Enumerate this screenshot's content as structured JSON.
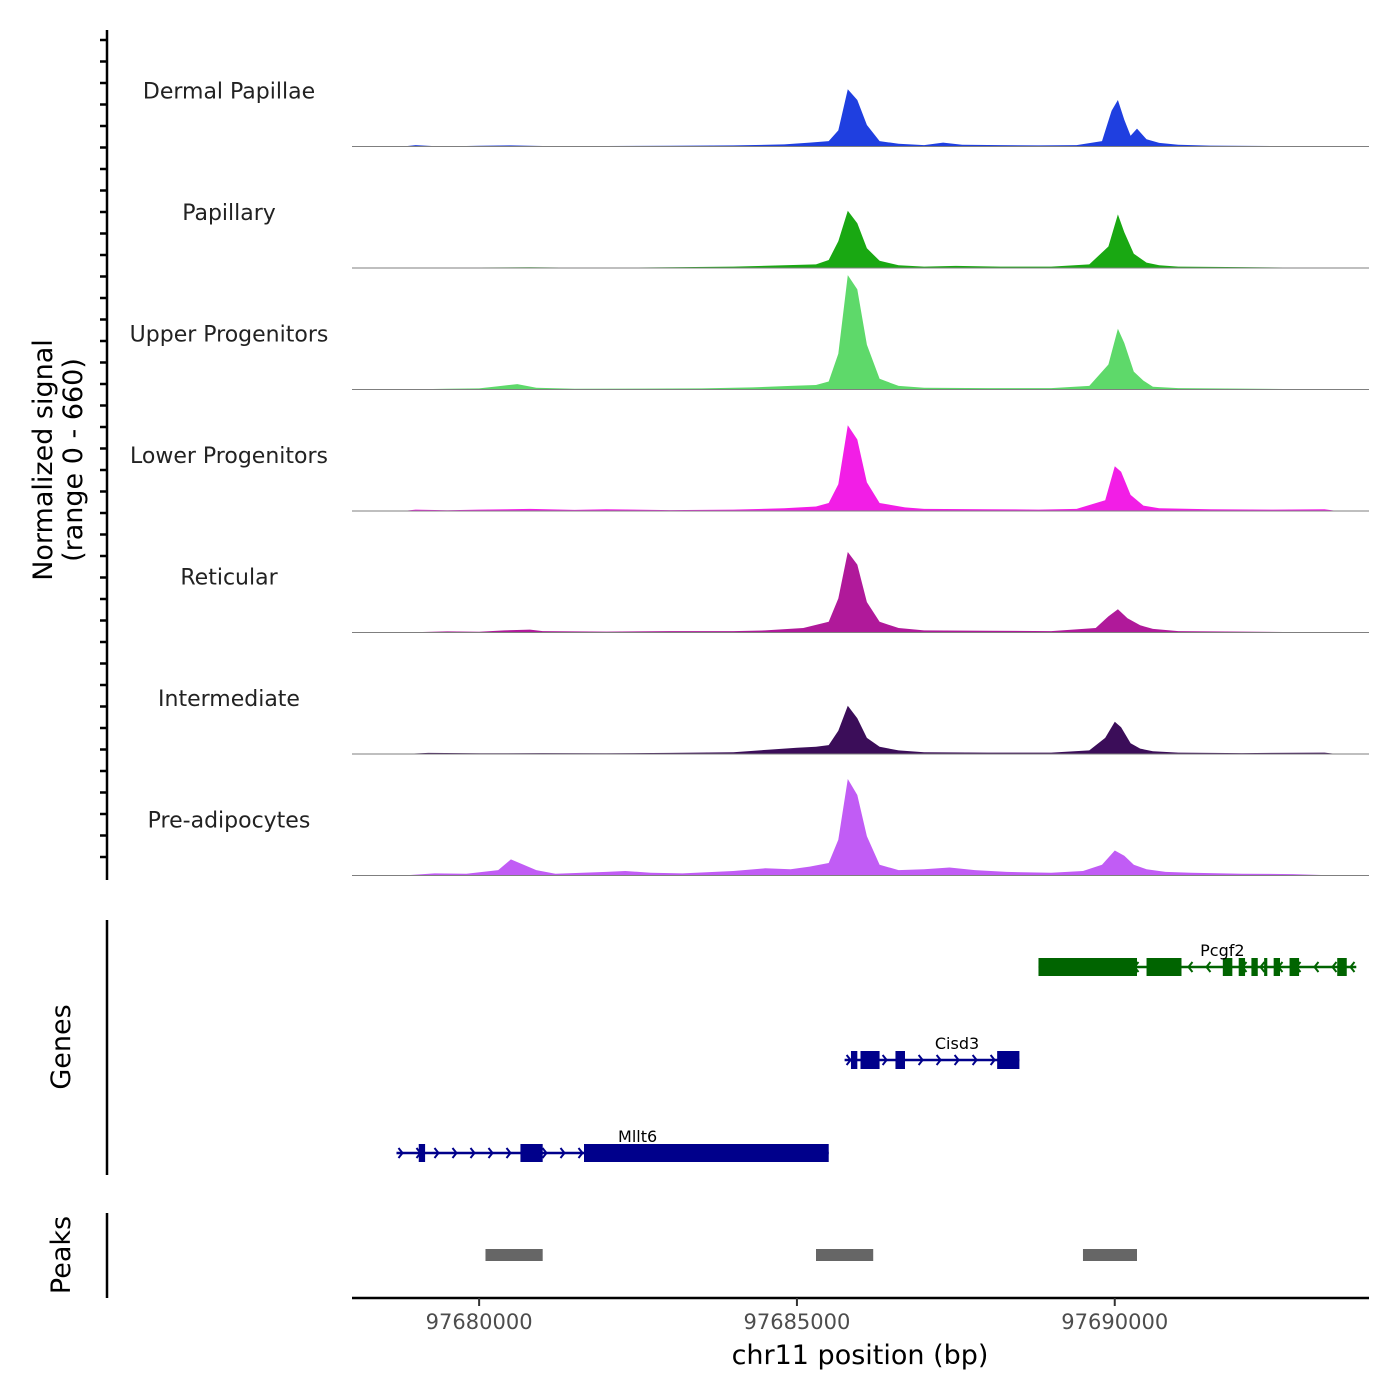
{
  "chart_data": {
    "type": "area",
    "title": "",
    "xlabel": "chr11 position (bp)",
    "ylabel_line1": "Normalized signal",
    "ylabel_line2": "(range 0 - 660)",
    "ylim": [
      0,
      660
    ],
    "xlim": [
      97678000,
      97694000
    ],
    "x_ticks": [
      97680000,
      97685000,
      97690000
    ],
    "x_tick_labels": [
      "97680000",
      "97685000",
      "97690000"
    ],
    "tracks": [
      {
        "name": "Dermal Papillae",
        "color": "#1f3fe0",
        "points": [
          [
            97678800,
            0
          ],
          [
            97679000,
            8
          ],
          [
            97679400,
            0
          ],
          [
            97680000,
            4
          ],
          [
            97680500,
            6
          ],
          [
            97681000,
            3
          ],
          [
            97682000,
            3
          ],
          [
            97683000,
            4
          ],
          [
            97684000,
            6
          ],
          [
            97684800,
            12
          ],
          [
            97685200,
            22
          ],
          [
            97685500,
            30
          ],
          [
            97685650,
            90
          ],
          [
            97685800,
            320
          ],
          [
            97685950,
            260
          ],
          [
            97686100,
            120
          ],
          [
            97686300,
            30
          ],
          [
            97686600,
            15
          ],
          [
            97687000,
            8
          ],
          [
            97687300,
            22
          ],
          [
            97687600,
            10
          ],
          [
            97688200,
            8
          ],
          [
            97688800,
            6
          ],
          [
            97689400,
            8
          ],
          [
            97689800,
            30
          ],
          [
            97689950,
            200
          ],
          [
            97690050,
            260
          ],
          [
            97690150,
            150
          ],
          [
            97690250,
            60
          ],
          [
            97690350,
            100
          ],
          [
            97690500,
            40
          ],
          [
            97690700,
            20
          ],
          [
            97691000,
            10
          ],
          [
            97691500,
            5
          ],
          [
            97692500,
            3
          ],
          [
            97693500,
            0
          ]
        ]
      },
      {
        "name": "Papillary",
        "color": "#19a812",
        "points": [
          [
            97678800,
            0
          ],
          [
            97680000,
            3
          ],
          [
            97680800,
            4
          ],
          [
            97681500,
            2
          ],
          [
            97682500,
            3
          ],
          [
            97683200,
            5
          ],
          [
            97684000,
            8
          ],
          [
            97684800,
            15
          ],
          [
            97685300,
            20
          ],
          [
            97685500,
            45
          ],
          [
            97685650,
            150
          ],
          [
            97685800,
            320
          ],
          [
            97685950,
            250
          ],
          [
            97686100,
            110
          ],
          [
            97686300,
            40
          ],
          [
            97686600,
            15
          ],
          [
            97687000,
            8
          ],
          [
            97687500,
            12
          ],
          [
            97688200,
            8
          ],
          [
            97689000,
            8
          ],
          [
            97689600,
            20
          ],
          [
            97689900,
            120
          ],
          [
            97690050,
            300
          ],
          [
            97690150,
            200
          ],
          [
            97690300,
            80
          ],
          [
            97690500,
            30
          ],
          [
            97690700,
            15
          ],
          [
            97691000,
            8
          ],
          [
            97692000,
            5
          ],
          [
            97693500,
            0
          ]
        ]
      },
      {
        "name": "Upper Progenitors",
        "color": "#5ed96a",
        "points": [
          [
            97678800,
            0
          ],
          [
            97679500,
            4
          ],
          [
            97680000,
            6
          ],
          [
            97680300,
            18
          ],
          [
            97680600,
            30
          ],
          [
            97680900,
            10
          ],
          [
            97681500,
            4
          ],
          [
            97682500,
            5
          ],
          [
            97683500,
            6
          ],
          [
            97684300,
            12
          ],
          [
            97684900,
            20
          ],
          [
            97685300,
            25
          ],
          [
            97685500,
            45
          ],
          [
            97685650,
            200
          ],
          [
            97685800,
            640
          ],
          [
            97685950,
            560
          ],
          [
            97686100,
            250
          ],
          [
            97686300,
            60
          ],
          [
            97686600,
            20
          ],
          [
            97687000,
            10
          ],
          [
            97688000,
            8
          ],
          [
            97689000,
            8
          ],
          [
            97689600,
            20
          ],
          [
            97689900,
            140
          ],
          [
            97690050,
            340
          ],
          [
            97690150,
            260
          ],
          [
            97690300,
            100
          ],
          [
            97690450,
            50
          ],
          [
            97690600,
            15
          ],
          [
            97691000,
            8
          ],
          [
            97692000,
            5
          ],
          [
            97693500,
            0
          ]
        ]
      },
      {
        "name": "Lower Progenitors",
        "color": "#f21ee6",
        "points": [
          [
            97678800,
            0
          ],
          [
            97679000,
            8
          ],
          [
            97679500,
            4
          ],
          [
            97680000,
            8
          ],
          [
            97680800,
            12
          ],
          [
            97681500,
            6
          ],
          [
            97682000,
            10
          ],
          [
            97683000,
            5
          ],
          [
            97684000,
            8
          ],
          [
            97684800,
            15
          ],
          [
            97685300,
            25
          ],
          [
            97685500,
            45
          ],
          [
            97685650,
            150
          ],
          [
            97685800,
            480
          ],
          [
            97685950,
            400
          ],
          [
            97686100,
            160
          ],
          [
            97686300,
            45
          ],
          [
            97686700,
            20
          ],
          [
            97687000,
            12
          ],
          [
            97688000,
            10
          ],
          [
            97688800,
            8
          ],
          [
            97689400,
            12
          ],
          [
            97689850,
            60
          ],
          [
            97690000,
            250
          ],
          [
            97690100,
            220
          ],
          [
            97690250,
            90
          ],
          [
            97690450,
            30
          ],
          [
            97690700,
            15
          ],
          [
            97691500,
            10
          ],
          [
            97692500,
            8
          ],
          [
            97693300,
            10
          ],
          [
            97693500,
            0
          ]
        ]
      },
      {
        "name": "Reticular",
        "color": "#b0199a",
        "points": [
          [
            97678800,
            0
          ],
          [
            97679500,
            6
          ],
          [
            97680000,
            4
          ],
          [
            97680400,
            12
          ],
          [
            97680800,
            16
          ],
          [
            97681000,
            8
          ],
          [
            97682000,
            5
          ],
          [
            97683000,
            8
          ],
          [
            97684000,
            8
          ],
          [
            97684500,
            12
          ],
          [
            97685100,
            25
          ],
          [
            97685500,
            60
          ],
          [
            97685650,
            190
          ],
          [
            97685800,
            450
          ],
          [
            97685950,
            380
          ],
          [
            97686100,
            170
          ],
          [
            97686300,
            60
          ],
          [
            97686600,
            25
          ],
          [
            97687000,
            12
          ],
          [
            97688000,
            10
          ],
          [
            97689000,
            8
          ],
          [
            97689700,
            25
          ],
          [
            97689900,
            90
          ],
          [
            97690050,
            130
          ],
          [
            97690200,
            80
          ],
          [
            97690400,
            40
          ],
          [
            97690600,
            20
          ],
          [
            97691000,
            8
          ],
          [
            97692000,
            5
          ],
          [
            97693500,
            0
          ]
        ]
      },
      {
        "name": "Intermediate",
        "color": "#3b0d59",
        "points": [
          [
            97678800,
            0
          ],
          [
            97679200,
            6
          ],
          [
            97680000,
            4
          ],
          [
            97681000,
            5
          ],
          [
            97682000,
            4
          ],
          [
            97683000,
            6
          ],
          [
            97684000,
            10
          ],
          [
            97684600,
            25
          ],
          [
            97685000,
            35
          ],
          [
            97685300,
            40
          ],
          [
            97685500,
            50
          ],
          [
            97685650,
            130
          ],
          [
            97685800,
            270
          ],
          [
            97685950,
            200
          ],
          [
            97686100,
            90
          ],
          [
            97686300,
            40
          ],
          [
            97686600,
            20
          ],
          [
            97687000,
            10
          ],
          [
            97688000,
            8
          ],
          [
            97689000,
            8
          ],
          [
            97689600,
            20
          ],
          [
            97689850,
            90
          ],
          [
            97690000,
            180
          ],
          [
            97690100,
            150
          ],
          [
            97690250,
            60
          ],
          [
            97690400,
            30
          ],
          [
            97690600,
            15
          ],
          [
            97691000,
            8
          ],
          [
            97692000,
            5
          ],
          [
            97693300,
            8
          ],
          [
            97693500,
            0
          ]
        ]
      },
      {
        "name": "Pre-adipocytes",
        "color": "#c15cf5",
        "points": [
          [
            97678800,
            0
          ],
          [
            97679300,
            12
          ],
          [
            97679800,
            10
          ],
          [
            97680300,
            30
          ],
          [
            97680500,
            90
          ],
          [
            97680700,
            60
          ],
          [
            97680900,
            30
          ],
          [
            97681200,
            10
          ],
          [
            97682000,
            20
          ],
          [
            97682300,
            25
          ],
          [
            97682700,
            15
          ],
          [
            97683200,
            12
          ],
          [
            97684000,
            25
          ],
          [
            97684500,
            40
          ],
          [
            97684900,
            35
          ],
          [
            97685200,
            50
          ],
          [
            97685500,
            70
          ],
          [
            97685650,
            200
          ],
          [
            97685800,
            540
          ],
          [
            97685950,
            450
          ],
          [
            97686100,
            220
          ],
          [
            97686300,
            60
          ],
          [
            97686600,
            30
          ],
          [
            97687000,
            35
          ],
          [
            97687400,
            45
          ],
          [
            97687800,
            30
          ],
          [
            97688300,
            20
          ],
          [
            97689000,
            15
          ],
          [
            97689500,
            25
          ],
          [
            97689800,
            60
          ],
          [
            97690000,
            140
          ],
          [
            97690150,
            110
          ],
          [
            97690300,
            60
          ],
          [
            97690500,
            35
          ],
          [
            97690800,
            20
          ],
          [
            97691200,
            15
          ],
          [
            97692000,
            10
          ],
          [
            97692800,
            8
          ],
          [
            97693500,
            0
          ]
        ]
      }
    ],
    "genes_track_label": "Genes",
    "genes": [
      {
        "name": "Pcgf2",
        "color": "#006400",
        "strand": "-",
        "start": 97688800,
        "end": 97693800,
        "blocks": [
          [
            97688800,
            97690350
          ],
          [
            97690500,
            97691050
          ],
          [
            97691700,
            97691850
          ],
          [
            97691950,
            97692050
          ],
          [
            97692150,
            97692250
          ],
          [
            97692350,
            97692400
          ],
          [
            97692500,
            97692600
          ],
          [
            97692750,
            97692900
          ],
          [
            97693500,
            97693650
          ]
        ]
      },
      {
        "name": "Cisd3",
        "color": "#00008b",
        "strand": "+",
        "start": 97685750,
        "end": 97688500,
        "blocks": [
          [
            97685850,
            97685950
          ],
          [
            97686000,
            97686300
          ],
          [
            97686550,
            97686700
          ],
          [
            97688150,
            97688500
          ]
        ]
      },
      {
        "name": "Mllt6",
        "color": "#00008b",
        "strand": "+",
        "start": 97678700,
        "end": 97685500,
        "blocks": [
          [
            97679050,
            97679150
          ],
          [
            97680650,
            97681000
          ],
          [
            97681650,
            97685500
          ]
        ]
      }
    ],
    "peaks_track_label": "Peaks",
    "peaks_color": "#666666",
    "peaks": [
      [
        97680100,
        97681000
      ],
      [
        97685300,
        97686200
      ],
      [
        97689500,
        97690350
      ]
    ]
  }
}
